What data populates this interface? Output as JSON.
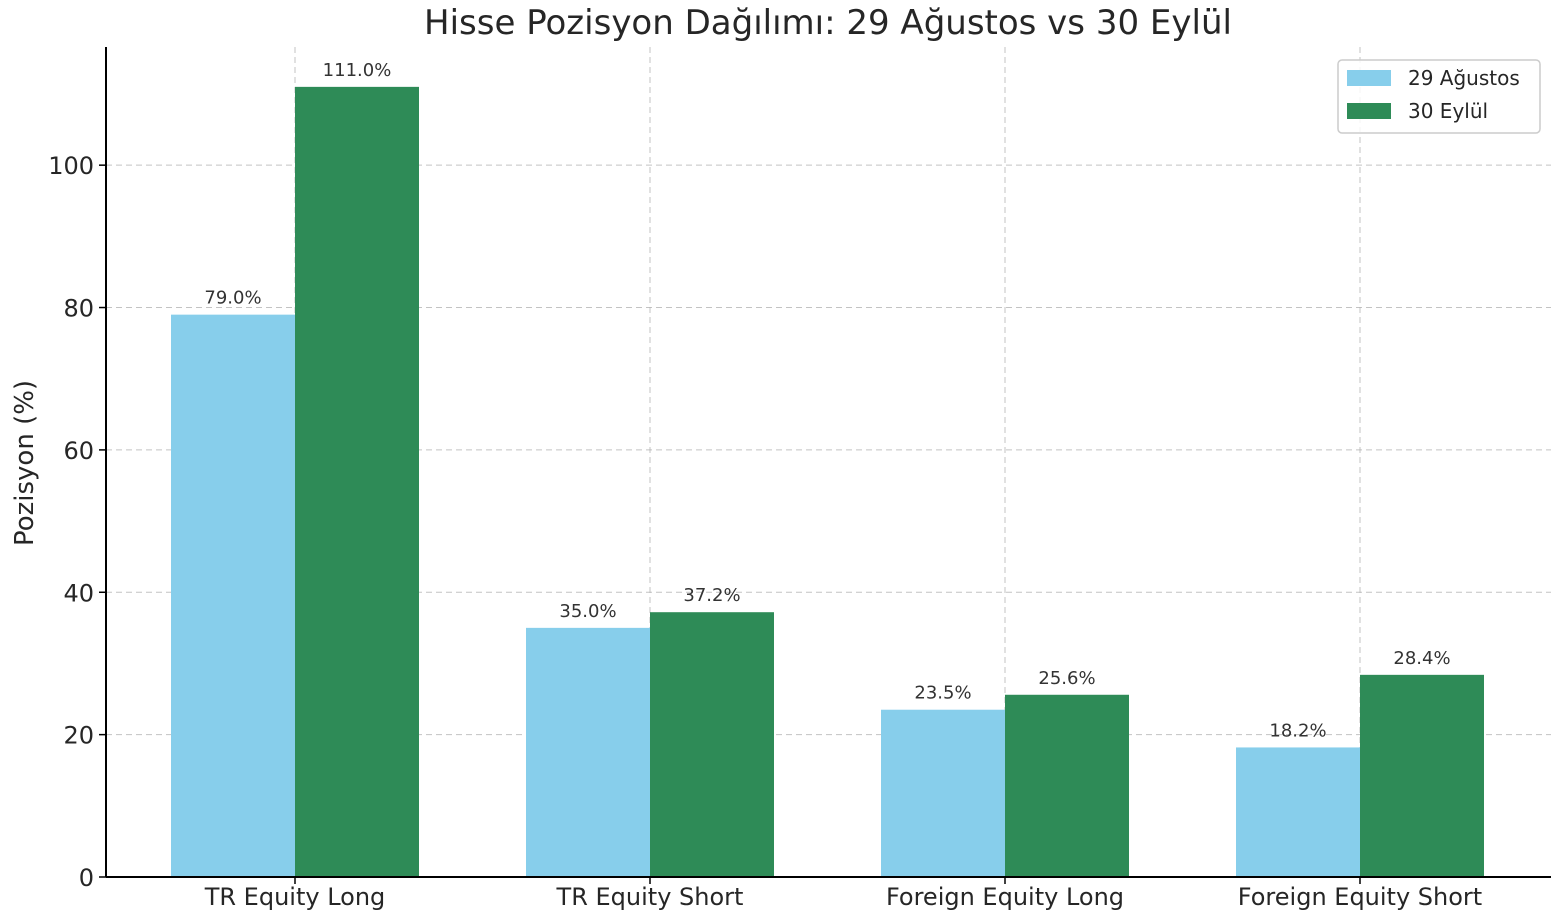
{
  "chart_data": {
    "type": "bar",
    "title": "Hisse Pozisyon Dağılımı: 29 Ağustos vs 30 Eylül",
    "xlabel": "",
    "ylabel": "Pozisyon (%)",
    "categories": [
      "TR Equity Long",
      "TR Equity Short",
      "Foreign Equity Long",
      "Foreign Equity Short"
    ],
    "series": [
      {
        "name": "29 Ağustos",
        "color": "#87ceeb",
        "values": [
          79.0,
          35.0,
          23.5,
          18.2
        ],
        "value_labels": [
          "79.0%",
          "35.0%",
          "23.5%",
          "18.2%"
        ]
      },
      {
        "name": "30 Eylül",
        "color": "#2e8b57",
        "values": [
          111.0,
          37.2,
          25.6,
          28.4
        ],
        "value_labels": [
          "111.0%",
          "37.2%",
          "25.6%",
          "28.4%"
        ]
      }
    ],
    "ylim": [
      0,
      116.6
    ],
    "yticks": [
      0,
      20,
      40,
      60,
      80,
      100
    ],
    "ytick_labels": [
      "0",
      "20",
      "40",
      "60",
      "80",
      "100"
    ],
    "grid": true,
    "legend_position": "top-right"
  }
}
